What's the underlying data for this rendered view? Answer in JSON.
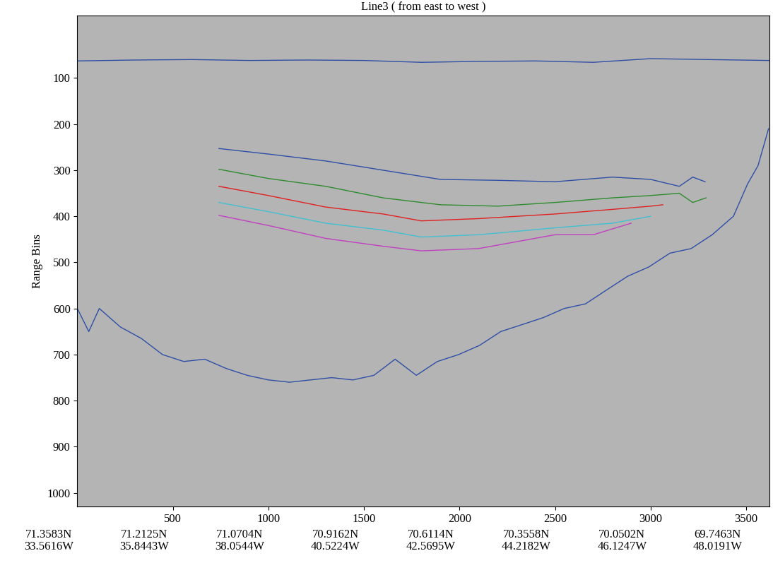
{
  "chart_data": {
    "type": "line",
    "title": "Line3 ( from east to west )",
    "y_label": "Range Bins",
    "xlim": [
      0,
      3620
    ],
    "xticks": [
      500,
      1000,
      1500,
      2000,
      2500,
      3000,
      3500
    ],
    "ylim": [
      1030,
      -35
    ],
    "yticks": [
      100,
      200,
      300,
      400,
      500,
      600,
      700,
      800,
      900,
      1000
    ],
    "grid": false,
    "locations": [
      {
        "x": -150,
        "lat": "71.3583N",
        "lon": "33.5616W"
      },
      {
        "x": 350,
        "lat": "71.2125N",
        "lon": "35.8443W"
      },
      {
        "x": 850,
        "lat": "71.0704N",
        "lon": "38.0544W"
      },
      {
        "x": 1350,
        "lat": "70.9162N",
        "lon": "40.5224W"
      },
      {
        "x": 1850,
        "lat": "70.6114N",
        "lon": "42.5695W"
      },
      {
        "x": 2350,
        "lat": "70.3558N",
        "lon": "44.2182W"
      },
      {
        "x": 2850,
        "lat": "70.0502N",
        "lon": "46.1247W"
      },
      {
        "x": 3350,
        "lat": "69.7463N",
        "lon": "48.0191W"
      }
    ],
    "series": [
      {
        "color": "#2f4fa6",
        "x": [
          0,
          300,
          600,
          900,
          1200,
          1500,
          1800,
          2100,
          2400,
          2700,
          3000,
          3300,
          3620
        ],
        "values": [
          63,
          61,
          60,
          62,
          61,
          62,
          66,
          64,
          63,
          66,
          58,
          60,
          62
        ]
      },
      {
        "color": "#2f4fa6",
        "x": [
          0,
          60,
          115,
          225,
          335,
          446,
          557,
          667,
          778,
          889,
          1000,
          1110,
          1220,
          1331,
          1442,
          1552,
          1663,
          1774,
          1884,
          1995,
          2105,
          2216,
          2327,
          2437,
          2548,
          2659,
          2769,
          2880,
          2990,
          3101,
          3212,
          3322,
          3433,
          3507,
          3562,
          3617
        ],
        "values": [
          600,
          650,
          600,
          640,
          665,
          700,
          715,
          710,
          730,
          745,
          755,
          760,
          755,
          750,
          755,
          745,
          710,
          745,
          715,
          700,
          680,
          650,
          635,
          620,
          600,
          590,
          560,
          530,
          510,
          480,
          470,
          440,
          400,
          330,
          290,
          210
        ]
      },
      {
        "color": "#2f4fa6",
        "x": [
          741,
          1000,
          1300,
          1600,
          1900,
          2200,
          2500,
          2800,
          3000,
          3150,
          3220,
          3285
        ],
        "values": [
          253,
          265,
          280,
          300,
          320,
          322,
          325,
          315,
          320,
          335,
          315,
          325
        ]
      },
      {
        "color": "#2e8b2e",
        "x": [
          741,
          1000,
          1300,
          1600,
          1900,
          2200,
          2500,
          2800,
          3000,
          3150,
          3220,
          3290
        ],
        "values": [
          298,
          318,
          335,
          360,
          375,
          378,
          370,
          360,
          355,
          350,
          370,
          360
        ]
      },
      {
        "color": "#e02020",
        "x": [
          741,
          1000,
          1300,
          1600,
          1800,
          2100,
          2500,
          2800,
          3000,
          3064
        ],
        "values": [
          335,
          355,
          380,
          395,
          410,
          405,
          395,
          385,
          378,
          375
        ]
      },
      {
        "color": "#40c0d0",
        "x": [
          741,
          1000,
          1300,
          1600,
          1800,
          2100,
          2500,
          2800,
          3000
        ],
        "values": [
          370,
          390,
          415,
          430,
          445,
          440,
          425,
          415,
          400
        ]
      },
      {
        "color": "#c040c0",
        "x": [
          741,
          1000,
          1300,
          1600,
          1800,
          2100,
          2500,
          2700,
          2898
        ],
        "values": [
          398,
          420,
          448,
          465,
          475,
          470,
          440,
          440,
          415
        ]
      }
    ]
  }
}
